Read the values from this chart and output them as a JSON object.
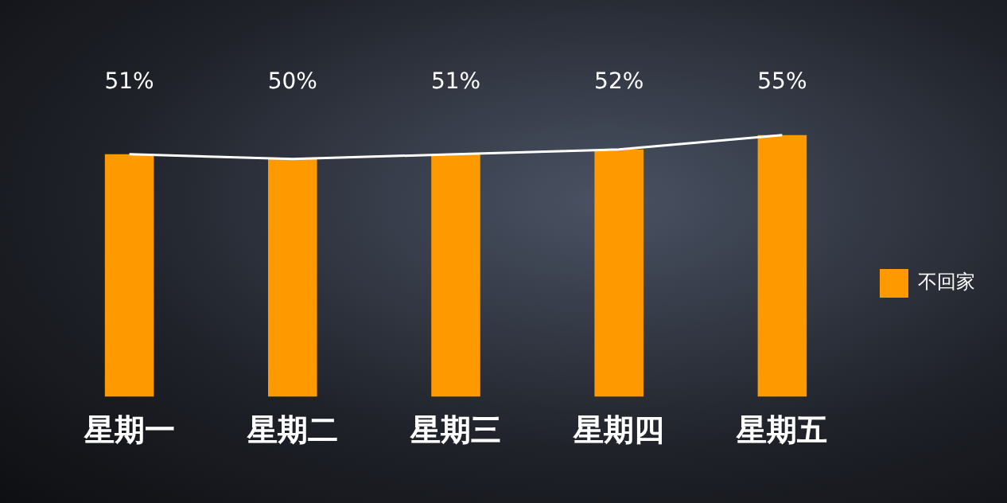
{
  "chart_data": {
    "type": "bar",
    "categories": [
      "星期一",
      "星期二",
      "星期三",
      "星期四",
      "星期五"
    ],
    "series": [
      {
        "name": "不回家",
        "color": "#ff9900",
        "values": [
          51,
          50,
          51,
          52,
          55
        ],
        "value_labels": [
          "51%",
          "50%",
          "51%",
          "52%",
          "55%"
        ]
      },
      {
        "type": "line",
        "color": "#ffffff",
        "values": [
          51,
          50,
          51,
          52,
          55
        ]
      }
    ],
    "grid": false,
    "legend": "right",
    "marker": "none"
  }
}
